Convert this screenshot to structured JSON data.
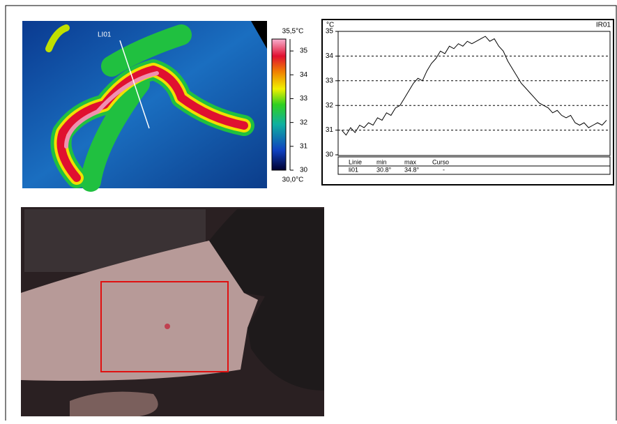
{
  "thermal": {
    "line_label": "LI01",
    "max_label": "35,5°C",
    "min_label": "30,0°C",
    "scale_lim": [
      30,
      35.5
    ],
    "scale_ticks": [
      30,
      31,
      32,
      33,
      34,
      35
    ]
  },
  "chart_data": {
    "type": "line",
    "y_unit": "°C",
    "title": "IR01",
    "ylim": [
      30,
      35
    ],
    "yticks": [
      30,
      31,
      32,
      33,
      34,
      35
    ],
    "grid": true,
    "color": "#000000",
    "values": [
      31.0,
      30.8,
      31.1,
      30.9,
      31.2,
      31.1,
      31.3,
      31.2,
      31.5,
      31.4,
      31.7,
      31.6,
      31.9,
      32.0,
      32.3,
      32.6,
      32.9,
      33.1,
      33.0,
      33.4,
      33.7,
      33.9,
      34.2,
      34.1,
      34.4,
      34.3,
      34.5,
      34.4,
      34.6,
      34.5,
      34.6,
      34.7,
      34.8,
      34.6,
      34.7,
      34.4,
      34.2,
      33.8,
      33.5,
      33.2,
      32.9,
      32.7,
      32.5,
      32.3,
      32.1,
      32.0,
      31.9,
      31.7,
      31.8,
      31.6,
      31.5,
      31.6,
      31.3,
      31.2,
      31.3,
      31.1,
      31.2,
      31.3,
      31.2,
      31.4
    ],
    "table": {
      "header": [
        "Linie",
        "min",
        "max",
        "Curso"
      ],
      "rows": [
        [
          "li01",
          "30.8°",
          "34.8°",
          "-"
        ]
      ]
    }
  }
}
